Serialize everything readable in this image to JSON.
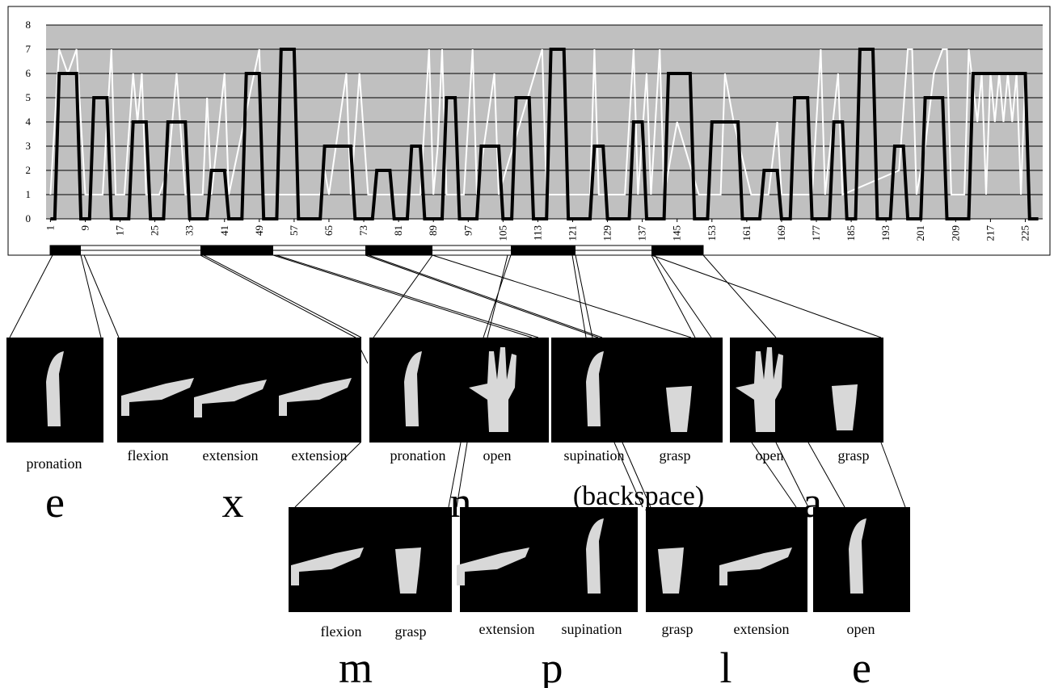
{
  "chart_data": {
    "type": "line",
    "xlim": [
      0,
      229
    ],
    "ylim": [
      0,
      8
    ],
    "xticks": [
      1,
      9,
      17,
      25,
      33,
      41,
      49,
      57,
      65,
      73,
      81,
      89,
      97,
      105,
      113,
      121,
      129,
      137,
      145,
      153,
      161,
      169,
      177,
      185,
      193,
      201,
      209,
      217,
      225
    ],
    "yticks": [
      0,
      1,
      2,
      3,
      4,
      5,
      6,
      7,
      8
    ],
    "grid": true,
    "background": "#c0c0c0",
    "series": [
      {
        "color": "#ffffff",
        "width": 2,
        "x": [
          1,
          3,
          5,
          7,
          9,
          13,
          15,
          16,
          18,
          20,
          21,
          22,
          23,
          26,
          28,
          30,
          32,
          36,
          37,
          38,
          41,
          42,
          49,
          50,
          63,
          64,
          65,
          69,
          70,
          72,
          74,
          86,
          88,
          89,
          90,
          91,
          92,
          96,
          98,
          99,
          103,
          104,
          114,
          115,
          125,
          126,
          127,
          133,
          135,
          136,
          138,
          139,
          141,
          142,
          145,
          150,
          155,
          156,
          158,
          162,
          166,
          168,
          169,
          176,
          178,
          179,
          182,
          183,
          196,
          198,
          199,
          200,
          202,
          204,
          206,
          207,
          208,
          211,
          212,
          214,
          215,
          216,
          217,
          218,
          219,
          220,
          221,
          222,
          223,
          224,
          225,
          226
        ],
        "values": [
          1,
          7,
          6,
          7,
          1,
          1,
          7,
          1,
          1,
          6,
          4,
          6,
          1,
          1,
          2,
          6,
          1,
          1,
          5,
          1,
          6,
          1,
          7,
          1,
          1,
          2,
          1,
          6,
          1,
          6,
          1,
          1,
          7,
          1,
          3,
          7,
          1,
          1,
          7,
          1,
          6,
          1,
          7,
          1,
          1,
          7,
          1,
          1,
          7,
          1,
          6,
          1,
          7,
          1,
          4,
          1,
          1,
          6,
          4,
          1,
          1,
          4,
          1,
          1,
          7,
          1,
          6,
          1,
          2,
          7,
          7,
          1,
          3,
          6,
          7,
          7,
          1,
          1,
          7,
          4,
          6,
          1,
          6,
          4,
          6,
          4,
          6,
          4,
          6,
          1,
          6,
          1
        ]
      },
      {
        "color": "#000000",
        "width": 4,
        "x": [
          1,
          2,
          3,
          7,
          8,
          10,
          11,
          14,
          15,
          19,
          20,
          23,
          24,
          27,
          28,
          32,
          33,
          37,
          38,
          41,
          42,
          45,
          46,
          49,
          50,
          53,
          54,
          57,
          58,
          63,
          64,
          70,
          71,
          75,
          76,
          79,
          80,
          83,
          84,
          86,
          87,
          91,
          92,
          94,
          95,
          99,
          100,
          104,
          105,
          107,
          108,
          111,
          112,
          115,
          116,
          119,
          120,
          125,
          126,
          128,
          129,
          134,
          135,
          137,
          138,
          142,
          143,
          148,
          149,
          152,
          153,
          159,
          160,
          164,
          165,
          168,
          169,
          171,
          172,
          175,
          176,
          180,
          181,
          183,
          184,
          186,
          187,
          190,
          191,
          194,
          195,
          197,
          198,
          201,
          202,
          206,
          207,
          212,
          213,
          225,
          226,
          228
        ],
        "values": [
          0,
          0,
          6,
          6,
          0,
          0,
          5,
          5,
          0,
          0,
          4,
          4,
          0,
          0,
          4,
          4,
          0,
          0,
          2,
          2,
          0,
          0,
          6,
          6,
          0,
          0,
          7,
          7,
          0,
          0,
          3,
          3,
          0,
          0,
          2,
          2,
          0,
          0,
          3,
          3,
          0,
          0,
          5,
          5,
          0,
          0,
          3,
          3,
          0,
          0,
          5,
          5,
          0,
          0,
          7,
          7,
          0,
          0,
          3,
          3,
          0,
          0,
          4,
          4,
          0,
          0,
          6,
          6,
          0,
          0,
          4,
          4,
          0,
          0,
          2,
          2,
          0,
          0,
          5,
          5,
          0,
          0,
          4,
          4,
          0,
          0,
          7,
          7,
          0,
          0,
          3,
          3,
          0,
          0,
          5,
          5,
          0,
          0,
          6,
          6,
          0,
          0
        ]
      }
    ]
  },
  "gestures": [
    [
      {
        "labels": [
          "pronation"
        ],
        "letter": "e"
      },
      {
        "labels": [
          "flexion",
          "extension",
          "extension"
        ],
        "letter": "x"
      },
      {
        "labels": [
          "pronation",
          "open"
        ],
        "letter": "n"
      },
      {
        "labels": [
          "supination",
          "grasp"
        ],
        "letter": "(backspace)"
      },
      {
        "labels": [
          "open",
          "grasp"
        ],
        "letter": "a"
      }
    ],
    [
      {
        "labels": [
          "flexion",
          "grasp"
        ],
        "letter": "m"
      },
      {
        "labels": [
          "extension",
          "supination"
        ],
        "letter": "p"
      },
      {
        "labels": [
          "grasp",
          "extension"
        ],
        "letter": "l"
      },
      {
        "labels": [
          "open"
        ],
        "letter": "e"
      }
    ]
  ]
}
